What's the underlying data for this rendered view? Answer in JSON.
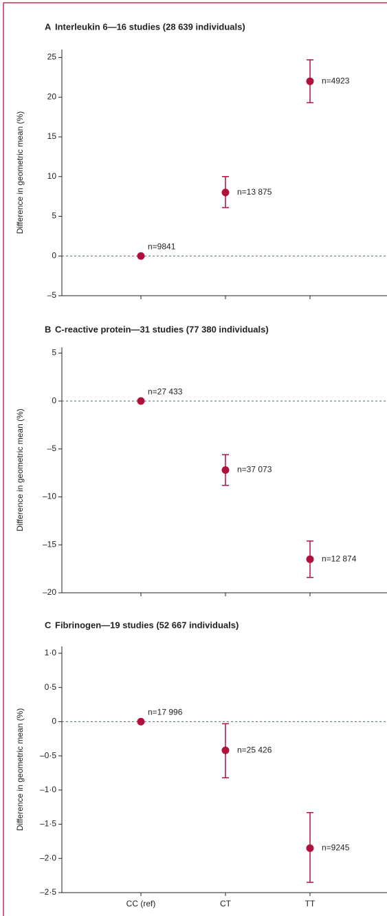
{
  "chart_data": [
    {
      "type": "errorbar",
      "panel": "A",
      "title": "Interleukin 6—16 studies (28 639 individuals)",
      "y_label": "Difference in geometric mean (%)",
      "ylim": [
        -5,
        26
      ],
      "yticks": [
        {
          "value": -5,
          "label": "–5"
        },
        0,
        5,
        10,
        15,
        20,
        25
      ],
      "series": [
        {
          "color": "#b0103c",
          "values": [
            0,
            8,
            22
          ],
          "ci_lower": [
            null,
            6.1,
            19.3
          ],
          "ci_upper": [
            null,
            10,
            24.7
          ],
          "point_labels": [
            "n=9841",
            "n=13 875",
            "n=4923"
          ]
        }
      ]
    },
    {
      "type": "errorbar",
      "panel": "B",
      "title": "C-reactive protein—31 studies (77 380 individuals)",
      "y_label": "Difference in geometric mean (%)",
      "ylim": [
        -20,
        5.6
      ],
      "yticks": [
        {
          "value": -20,
          "label": "–20"
        },
        {
          "value": -15,
          "label": "–15"
        },
        {
          "value": -10,
          "label": "–10"
        },
        {
          "value": -5,
          "label": "–5"
        },
        0,
        5
      ],
      "series": [
        {
          "color": "#b0103c",
          "values": [
            0,
            -7.2,
            -16.5
          ],
          "ci_lower": [
            null,
            -8.8,
            -18.4
          ],
          "ci_upper": [
            null,
            -5.6,
            -14.6
          ],
          "point_labels": [
            "n=27 433",
            "n=37 073",
            "n=12 874"
          ]
        }
      ]
    },
    {
      "type": "errorbar",
      "panel": "C",
      "title": "Fibrinogen—19 studies (52 667 individuals)",
      "y_label": "Difference in geometric mean (%)",
      "ylim": [
        -2.5,
        1.1
      ],
      "yticks": [
        {
          "value": -2.5,
          "label": "–2·5"
        },
        {
          "value": -2,
          "label": "–2·0"
        },
        {
          "value": -1.5,
          "label": "–1·5"
        },
        {
          "value": -1,
          "label": "–1·0"
        },
        {
          "value": -0.5,
          "label": "–0·5"
        },
        0,
        {
          "value": 0.5,
          "label": "0·5"
        },
        {
          "value": 1,
          "label": "1·0"
        }
      ],
      "categories": [
        "CC (ref)",
        "CT",
        "TT"
      ],
      "series": [
        {
          "color": "#b0103c",
          "values": [
            0,
            -0.42,
            -1.85
          ],
          "ci_lower": [
            null,
            -0.82,
            -2.35
          ],
          "ci_upper": [
            null,
            -0.03,
            -1.33
          ],
          "point_labels": [
            "n=17 996",
            "n=25 426",
            "n=9245"
          ]
        }
      ]
    }
  ]
}
